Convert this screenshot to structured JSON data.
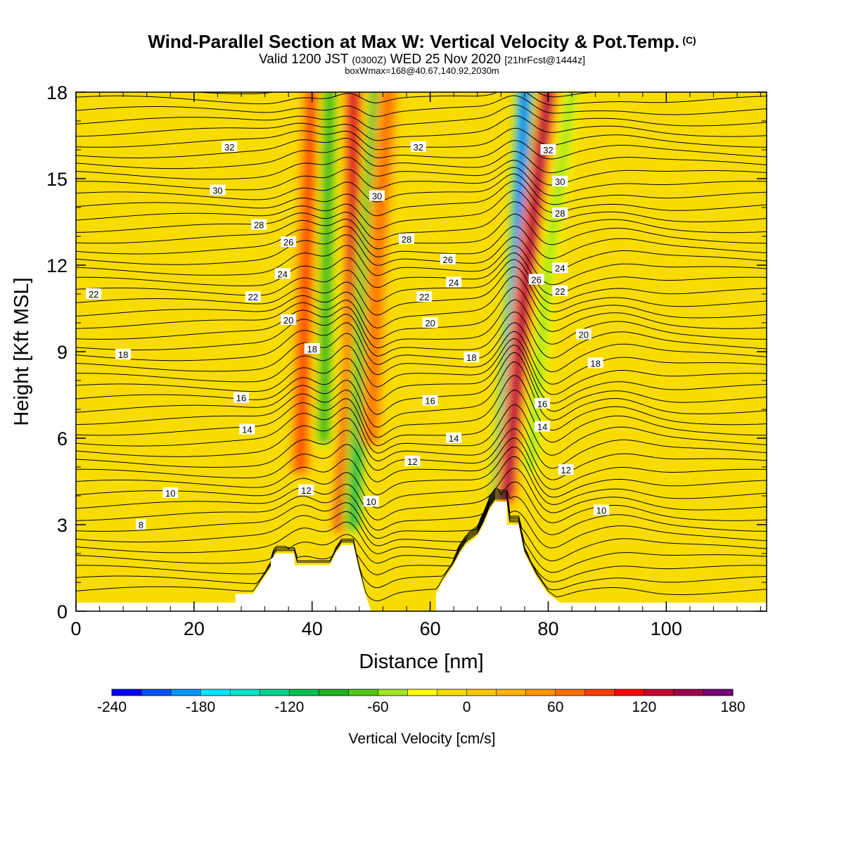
{
  "title": {
    "main": "Wind-Parallel Section at Max W: Vertical Velocity & Pot.Temp.",
    "copyright": "(C)",
    "valid_prefix": "Valid 1200 JST",
    "valid_utc": "(0300Z)",
    "valid_date": "WED 25 Nov 2020",
    "forecast": "[21hrFcst@1444z]",
    "boxinfo": "boxWmax=168@40.67,140.92,2030m"
  },
  "colors": {
    "background": "#ffffff",
    "terrain": "#ffffff",
    "contour": "#000000",
    "zero_fill": "#f8dc00"
  },
  "chart_data": {
    "type": "heatmap",
    "xlabel": "Distance [nm]",
    "ylabel": "Height [Kft MSL]",
    "xlim": [
      0,
      117
    ],
    "ylim": [
      0,
      18
    ],
    "x_ticks": [
      0,
      20,
      40,
      60,
      80,
      100
    ],
    "y_ticks": [
      0,
      3,
      6,
      9,
      12,
      15,
      18
    ],
    "colorbar": {
      "label": "Vertical Velocity [cm/s]",
      "min": -240,
      "max": 180,
      "step": 20,
      "tick_values": [
        -240,
        -180,
        -120,
        -60,
        0,
        60,
        120,
        180
      ],
      "colors": [
        "#0000ff",
        "#0050ff",
        "#0096ff",
        "#00e6ff",
        "#00e6c8",
        "#00d28c",
        "#00c050",
        "#1eb41e",
        "#50c814",
        "#a0e61e",
        "#ffff00",
        "#f8dc00",
        "#ffc800",
        "#ffb400",
        "#ff9600",
        "#ff6e00",
        "#ff3c00",
        "#ff0000",
        "#c80032",
        "#a00050",
        "#780078"
      ]
    },
    "terrain_outline": [
      [
        0,
        0.3
      ],
      [
        27,
        0.3
      ],
      [
        27,
        0.6
      ],
      [
        30,
        0.6
      ],
      [
        31,
        0.9
      ],
      [
        32,
        1.2
      ],
      [
        33,
        1.5
      ],
      [
        33,
        1.8
      ],
      [
        34,
        2.0
      ],
      [
        37,
        2.0
      ],
      [
        37,
        1.6
      ],
      [
        43,
        1.6
      ],
      [
        44,
        2.0
      ],
      [
        45,
        2.3
      ],
      [
        47,
        2.3
      ],
      [
        48,
        1.4
      ],
      [
        49,
        0.6
      ],
      [
        50,
        0
      ],
      [
        61,
        0
      ],
      [
        61,
        0.6
      ],
      [
        62,
        1.0
      ],
      [
        64,
        1.6
      ],
      [
        65,
        2.0
      ],
      [
        66,
        2.3
      ],
      [
        68,
        2.6
      ],
      [
        69,
        3.0
      ],
      [
        70,
        3.5
      ],
      [
        71,
        3.8
      ],
      [
        73,
        3.8
      ],
      [
        73,
        3.0
      ],
      [
        75,
        3.0
      ],
      [
        76,
        2.0
      ],
      [
        78,
        1.2
      ],
      [
        80,
        0.6
      ],
      [
        82,
        0.3
      ],
      [
        117,
        0.3
      ]
    ],
    "updraft_bands": [
      {
        "name": "band1",
        "sign": "up",
        "peak": 110,
        "path": [
          [
            38,
            5
          ],
          [
            39,
            12
          ],
          [
            40,
            18
          ]
        ]
      },
      {
        "name": "band2",
        "sign": "up",
        "peak": 150,
        "path": [
          [
            45,
            3
          ],
          [
            47,
            9
          ],
          [
            47,
            18
          ]
        ]
      },
      {
        "name": "band3",
        "sign": "down",
        "peak": -110,
        "path": [
          [
            42,
            6
          ],
          [
            42.5,
            12
          ],
          [
            43,
            18
          ]
        ]
      },
      {
        "name": "band4",
        "sign": "down",
        "peak": -120,
        "path": [
          [
            47,
            3
          ],
          [
            49,
            11
          ],
          [
            51,
            18
          ]
        ]
      },
      {
        "name": "band5",
        "sign": "up",
        "peak": 80,
        "path": [
          [
            50,
            6
          ],
          [
            51,
            12
          ],
          [
            53,
            18
          ]
        ]
      },
      {
        "name": "band6",
        "sign": "down",
        "peak": -230,
        "path": [
          [
            72,
            4
          ],
          [
            75,
            13
          ],
          [
            76,
            18
          ]
        ]
      },
      {
        "name": "band7",
        "sign": "up",
        "peak": 170,
        "path": [
          [
            73,
            4
          ],
          [
            76,
            11
          ],
          [
            80,
            18
          ]
        ]
      },
      {
        "name": "band8",
        "sign": "down",
        "peak": -70,
        "path": [
          [
            77,
            5
          ],
          [
            80,
            12
          ],
          [
            84,
            18
          ]
        ]
      }
    ],
    "theta_labels": [
      {
        "text": "32",
        "x": 26,
        "y": 16.1
      },
      {
        "text": "30",
        "x": 24,
        "y": 14.6
      },
      {
        "text": "28",
        "x": 31,
        "y": 13.4
      },
      {
        "text": "26",
        "x": 36,
        "y": 12.8
      },
      {
        "text": "24",
        "x": 35,
        "y": 11.7
      },
      {
        "text": "22",
        "x": 3,
        "y": 11.0
      },
      {
        "text": "22",
        "x": 30,
        "y": 10.9
      },
      {
        "text": "20",
        "x": 36,
        "y": 10.1
      },
      {
        "text": "18",
        "x": 8,
        "y": 8.9
      },
      {
        "text": "18",
        "x": 40,
        "y": 9.1
      },
      {
        "text": "16",
        "x": 28,
        "y": 7.4
      },
      {
        "text": "14",
        "x": 29,
        "y": 6.3
      },
      {
        "text": "12",
        "x": 39,
        "y": 4.2
      },
      {
        "text": "10",
        "x": 16,
        "y": 4.1
      },
      {
        "text": "10",
        "x": 50,
        "y": 3.8
      },
      {
        "text": "8",
        "x": 11,
        "y": 3.0
      },
      {
        "text": "32",
        "x": 58,
        "y": 16.1
      },
      {
        "text": "30",
        "x": 51,
        "y": 14.4
      },
      {
        "text": "28",
        "x": 56,
        "y": 12.9
      },
      {
        "text": "26",
        "x": 63,
        "y": 12.2
      },
      {
        "text": "24",
        "x": 64,
        "y": 11.4
      },
      {
        "text": "22",
        "x": 59,
        "y": 10.9
      },
      {
        "text": "20",
        "x": 60,
        "y": 10.0
      },
      {
        "text": "18",
        "x": 67,
        "y": 8.8
      },
      {
        "text": "16",
        "x": 60,
        "y": 7.3
      },
      {
        "text": "14",
        "x": 64,
        "y": 6.0
      },
      {
        "text": "12",
        "x": 57,
        "y": 5.2
      },
      {
        "text": "32",
        "x": 80,
        "y": 16.0
      },
      {
        "text": "30",
        "x": 82,
        "y": 14.9
      },
      {
        "text": "28",
        "x": 82,
        "y": 13.8
      },
      {
        "text": "26",
        "x": 78,
        "y": 11.5
      },
      {
        "text": "24",
        "x": 82,
        "y": 11.9
      },
      {
        "text": "22",
        "x": 82,
        "y": 11.1
      },
      {
        "text": "20",
        "x": 86,
        "y": 9.6
      },
      {
        "text": "18",
        "x": 88,
        "y": 8.6
      },
      {
        "text": "16",
        "x": 79,
        "y": 7.2
      },
      {
        "text": "14",
        "x": 79,
        "y": 6.4
      },
      {
        "text": "12",
        "x": 83,
        "y": 4.9
      },
      {
        "text": "10",
        "x": 89,
        "y": 3.5
      }
    ]
  }
}
